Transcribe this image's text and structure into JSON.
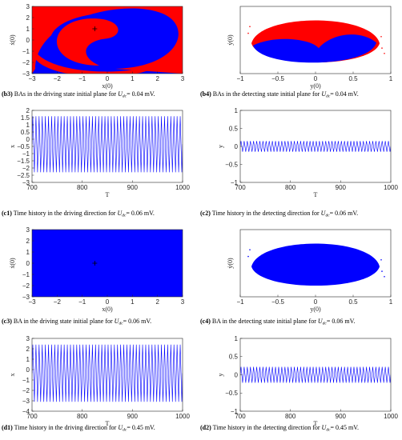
{
  "chart_data": [
    {
      "id": "b3",
      "type": "basin",
      "xlabel": "x(0)",
      "ylabel": "ẋ(0)",
      "xlim": [
        -3,
        3
      ],
      "ylim": [
        -3,
        3
      ],
      "xticks": [
        "−3",
        "−2",
        "−1",
        "0",
        "1",
        "2",
        "3"
      ],
      "yticks": [
        "3",
        "2",
        "1",
        "0",
        "−1",
        "−2",
        "−3"
      ],
      "colors": {
        "a": "#0000ff",
        "b": "#ff0000"
      },
      "marker": {
        "x": -0.5,
        "y": 1.0
      },
      "caption": {
        "label": "(b3)",
        "text": " BAs in the driving state initial plane for ",
        "var": "U",
        "sub": "dc",
        "tail": "= 0.04 mV."
      }
    },
    {
      "id": "b4",
      "type": "basin-ellipse",
      "xlabel": "y(0)",
      "ylabel": "ẏ(0)",
      "xlim": [
        -1,
        1
      ],
      "xticks": [
        "−1",
        "−0.5",
        "0",
        "0.5",
        "1"
      ],
      "yticks": [],
      "colors": {
        "a": "#0000ff",
        "b": "#ff0000"
      },
      "caption": {
        "label": "(b4)",
        "text": " BAs in the detecting state initial plane for ",
        "var": "U",
        "sub": "dc",
        "tail": "= 0.04 mV."
      }
    },
    {
      "id": "c1",
      "type": "line",
      "xlabel": "T",
      "ylabel": "x",
      "x": [
        700,
        1000
      ],
      "ylim": [
        -3,
        2
      ],
      "xticks": [
        "700",
        "800",
        "900",
        "1000"
      ],
      "yticks": [
        "2",
        "1.5",
        "1",
        "0.5",
        "0",
        "−0.5",
        "−1",
        "−1.5",
        "−2",
        "−2.5",
        "−3"
      ],
      "band": [
        -2.3,
        1.6
      ],
      "cycles": 48,
      "color": "#0000ff",
      "caption": {
        "label": "(c1)",
        "text": " Time history in the driving direction for ",
        "var": "U",
        "sub": "dc",
        "tail": "= 0.06 mV."
      }
    },
    {
      "id": "c2",
      "type": "line",
      "xlabel": "T",
      "ylabel": "y",
      "x": [
        700,
        1000
      ],
      "ylim": [
        -1,
        1
      ],
      "xticks": [
        "700",
        "800",
        "900",
        "1000"
      ],
      "yticks": [
        "1",
        "0.5",
        "0",
        "−0.5",
        "−1"
      ],
      "band": [
        -0.15,
        0.15
      ],
      "cycles": 48,
      "color": "#0000ff",
      "caption": {
        "label": "(c2)",
        "text": " Time history in the detecting direction for ",
        "var": "U",
        "sub": "dc",
        "tail": "= 0.06 mV."
      }
    },
    {
      "id": "c3",
      "type": "basin-solid",
      "xlabel": "x(0)",
      "ylabel": "ẋ(0)",
      "xlim": [
        -3,
        3
      ],
      "ylim": [
        -3,
        3
      ],
      "xticks": [
        "−3",
        "−2",
        "−1",
        "0",
        "1",
        "2",
        "3"
      ],
      "yticks": [
        "3",
        "2",
        "1",
        "0",
        "−1",
        "−2",
        "−3"
      ],
      "colors": {
        "a": "#0000ff"
      },
      "marker": {
        "x": -0.5,
        "y": 0.0
      },
      "caption": {
        "label": "(c3)",
        "text": " BA in the driving state initial plane for ",
        "var": "U",
        "sub": "dc",
        "tail": "= 0.06 mV."
      }
    },
    {
      "id": "c4",
      "type": "basin-ellipse-solid",
      "xlabel": "y(0)",
      "ylabel": "ẏ(0)",
      "xlim": [
        -1,
        1
      ],
      "xticks": [
        "−1",
        "−0.5",
        "0",
        "0.5",
        "1"
      ],
      "yticks": [],
      "colors": {
        "a": "#0000ff"
      },
      "caption": {
        "label": "(c4)",
        "text": " BA in the detecting state initial plane for ",
        "var": "U",
        "sub": "dc",
        "tail": "= 0.06 mV."
      }
    },
    {
      "id": "d1",
      "type": "line",
      "xlabel": "T",
      "ylabel": "x",
      "x": [
        700,
        1000
      ],
      "ylim": [
        -4,
        3
      ],
      "xticks": [
        "700",
        "800",
        "900",
        "1000"
      ],
      "yticks": [
        "3",
        "2",
        "1",
        "0",
        "−1",
        "−2",
        "−3",
        "−4"
      ],
      "band": [
        -3.1,
        2.4
      ],
      "cycles": 48,
      "color": "#0000ff",
      "caption": {
        "label": "(d1)",
        "text": " Time history in the driving direction for ",
        "var": "U",
        "sub": "dc",
        "tail": "= 0.45 mV."
      }
    },
    {
      "id": "d2",
      "type": "line",
      "xlabel": "T",
      "ylabel": "y",
      "x": [
        700,
        1000
      ],
      "ylim": [
        -1,
        1
      ],
      "xticks": [
        "700",
        "800",
        "900",
        "1000"
      ],
      "yticks": [
        "1",
        "0.5",
        "0",
        "−0.5",
        "−1"
      ],
      "band": [
        -0.22,
        0.22
      ],
      "cycles": 48,
      "color": "#0000ff",
      "caption": {
        "label": "(d2)",
        "text": " Time history in the detecting direction for ",
        "var": "U",
        "sub": "dc",
        "tail": "= 0.45 mV."
      }
    }
  ]
}
